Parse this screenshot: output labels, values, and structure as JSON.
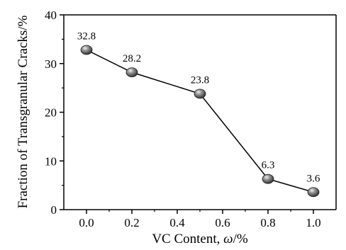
{
  "chart_data": {
    "type": "line",
    "x": [
      0.0,
      0.2,
      0.5,
      0.8,
      1.0
    ],
    "values": [
      32.8,
      28.2,
      23.8,
      6.3,
      3.6
    ],
    "data_labels": [
      "32.8",
      "28.2",
      "23.8",
      "6.3",
      "3.6"
    ],
    "xlabel": "VC Content, ω/%",
    "xlabel_prefix": "VC Content, ",
    "xlabel_symbol": "ω",
    "xlabel_suffix": "/%",
    "ylabel": "Fraction of Transgranular Cracks/%",
    "xlim": [
      -0.1,
      1.1
    ],
    "ylim": [
      0,
      40
    ],
    "xticks": [
      "0.0",
      "0.2",
      "0.4",
      "0.6",
      "0.8",
      "1.0"
    ],
    "xtick_values": [
      0.0,
      0.2,
      0.4,
      0.6,
      0.8,
      1.0
    ],
    "yticks": [
      "0",
      "10",
      "20",
      "30",
      "40"
    ],
    "ytick_values": [
      0,
      10,
      20,
      30,
      40
    ],
    "grid": false,
    "marker": "sphere",
    "line_color": "#000000",
    "marker_color": "#6e6e6e"
  }
}
